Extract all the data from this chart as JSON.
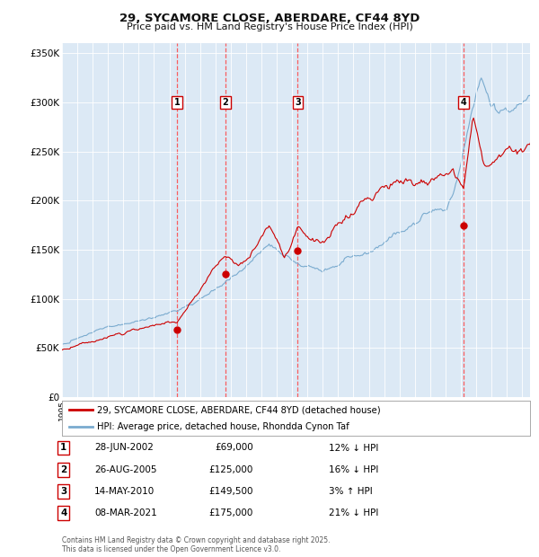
{
  "title": "29, SYCAMORE CLOSE, ABERDARE, CF44 8YD",
  "subtitle": "Price paid vs. HM Land Registry's House Price Index (HPI)",
  "plot_bg_color": "#dce9f5",
  "red_line_color": "#cc0000",
  "blue_line_color": "#7aabcf",
  "legend_label_red": "29, SYCAMORE CLOSE, ABERDARE, CF44 8YD (detached house)",
  "legend_label_blue": "HPI: Average price, detached house, Rhondda Cynon Taf",
  "footer": "Contains HM Land Registry data © Crown copyright and database right 2025.\nThis data is licensed under the Open Government Licence v3.0.",
  "transactions": [
    {
      "num": 1,
      "date": "28-JUN-2002",
      "price": 69000,
      "pct": "12%",
      "dir": "↓",
      "year": 2002.49
    },
    {
      "num": 2,
      "date": "26-AUG-2005",
      "price": 125000,
      "pct": "16%",
      "dir": "↓",
      "year": 2005.65
    },
    {
      "num": 3,
      "date": "14-MAY-2010",
      "price": 149500,
      "pct": "3%",
      "dir": "↑",
      "year": 2010.37
    },
    {
      "num": 4,
      "date": "08-MAR-2021",
      "price": 175000,
      "pct": "21%",
      "dir": "↓",
      "year": 2021.18
    }
  ],
  "ylim": [
    0,
    360000
  ],
  "yticks": [
    0,
    50000,
    100000,
    150000,
    200000,
    250000,
    300000,
    350000
  ],
  "ytick_labels": [
    "£0",
    "£50K",
    "£100K",
    "£150K",
    "£200K",
    "£250K",
    "£300K",
    "£350K"
  ],
  "xlim_start": 1995.0,
  "xlim_end": 2025.5
}
